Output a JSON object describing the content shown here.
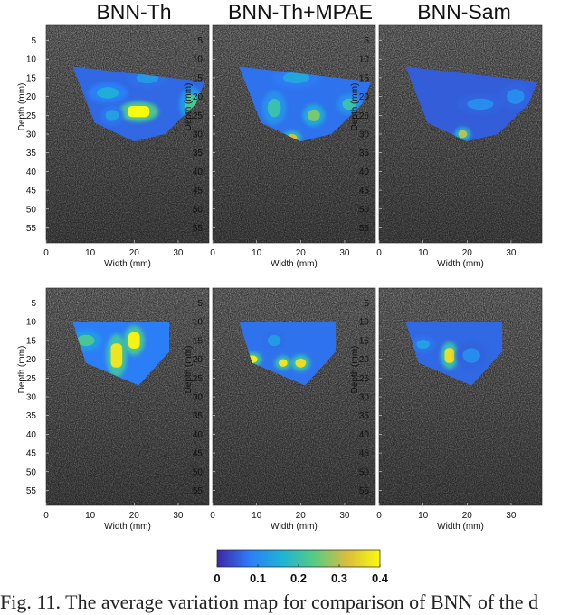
{
  "titles": [
    "BNN-Th",
    "BNN-Th+MPAE",
    "BNN-Sam"
  ],
  "caption": "Fig. 11. The average variation map for comparison of BNN of the d",
  "colorbar": {
    "ticks": [
      "0",
      "0.1",
      "0.2",
      "0.3",
      "0.4"
    ],
    "colors": [
      "#3e26a8",
      "#2c7ef7",
      "#1db4d5",
      "#57cc82",
      "#dcbd3b",
      "#f9fb0e"
    ]
  },
  "chart_data": [
    {
      "type": "heatmap",
      "title": "BNN-Th",
      "xlabel": "Width (mm)",
      "ylabel": "Depth (mm)",
      "xticks": [
        "0",
        "10",
        "20",
        "30"
      ],
      "yticks": [
        "5",
        "10",
        "15",
        "20",
        "25",
        "30",
        "35",
        "40",
        "45",
        "50",
        "55"
      ],
      "xlim": [
        0,
        37
      ],
      "ylim": [
        1,
        59
      ],
      "colormap": "parula",
      "clim": [
        0,
        0.4
      ],
      "roi_polygon": [
        [
          6,
          12
        ],
        [
          36,
          16
        ],
        [
          34,
          22
        ],
        [
          27,
          30
        ],
        [
          20,
          32
        ],
        [
          11,
          27
        ]
      ],
      "base_value": 0.06,
      "hotspots": [
        {
          "x": 21,
          "y": 24,
          "rx": 2.5,
          "ry": 1.5,
          "value": 0.4,
          "shape": "rect"
        },
        {
          "x": 14,
          "y": 19,
          "rx": 2.5,
          "ry": 1.5,
          "value": 0.15,
          "shape": "ellipse"
        },
        {
          "x": 33,
          "y": 22,
          "rx": 1.5,
          "ry": 2.5,
          "value": 0.22,
          "shape": "ellipse"
        },
        {
          "x": 23,
          "y": 15,
          "rx": 2.5,
          "ry": 1.5,
          "value": 0.12,
          "shape": "ellipse"
        },
        {
          "x": 15,
          "y": 25,
          "rx": 1.5,
          "ry": 1.5,
          "value": 0.13,
          "shape": "ellipse"
        }
      ]
    },
    {
      "type": "heatmap",
      "title": "BNN-Th+MPAE",
      "xlabel": "Width (mm)",
      "ylabel": "Depth (mm)",
      "xticks": [
        "0",
        "10",
        "20",
        "30"
      ],
      "yticks": [
        "5",
        "10",
        "15",
        "20",
        "25",
        "30",
        "35",
        "40",
        "45",
        "50",
        "55"
      ],
      "xlim": [
        0,
        37
      ],
      "ylim": [
        1,
        59
      ],
      "colormap": "parula",
      "clim": [
        0,
        0.4
      ],
      "roi_polygon": [
        [
          6,
          12
        ],
        [
          36,
          16
        ],
        [
          34,
          22
        ],
        [
          27,
          30
        ],
        [
          20,
          32
        ],
        [
          11,
          27
        ]
      ],
      "base_value": 0.07,
      "hotspots": [
        {
          "x": 18,
          "y": 31,
          "rx": 1.2,
          "ry": 1.0,
          "value": 0.32,
          "shape": "ellipse"
        },
        {
          "x": 23,
          "y": 25,
          "rx": 1.4,
          "ry": 1.6,
          "value": 0.26,
          "shape": "ellipse"
        },
        {
          "x": 14,
          "y": 23,
          "rx": 1.5,
          "ry": 2.5,
          "value": 0.2,
          "shape": "ellipse"
        },
        {
          "x": 31,
          "y": 22,
          "rx": 1.5,
          "ry": 1.5,
          "value": 0.2,
          "shape": "ellipse"
        },
        {
          "x": 19,
          "y": 15,
          "rx": 3,
          "ry": 1.5,
          "value": 0.14,
          "shape": "ellipse"
        }
      ]
    },
    {
      "type": "heatmap",
      "title": "BNN-Sam",
      "xlabel": "Width (mm)",
      "ylabel": "Depth (mm)",
      "xticks": [
        "0",
        "10",
        "20",
        "30"
      ],
      "yticks": [
        "5",
        "10",
        "15",
        "20",
        "25",
        "30",
        "35",
        "40",
        "45",
        "50",
        "55"
      ],
      "xlim": [
        0,
        37
      ],
      "ylim": [
        1,
        59
      ],
      "colormap": "parula",
      "clim": [
        0,
        0.4
      ],
      "roi_polygon": [
        [
          6,
          12
        ],
        [
          36,
          16
        ],
        [
          34,
          22
        ],
        [
          27,
          30
        ],
        [
          20,
          32
        ],
        [
          11,
          27
        ]
      ],
      "base_value": 0.05,
      "hotspots": [
        {
          "x": 19,
          "y": 30,
          "rx": 1.0,
          "ry": 1.0,
          "value": 0.3,
          "shape": "ellipse"
        },
        {
          "x": 23,
          "y": 22,
          "rx": 3,
          "ry": 1.5,
          "value": 0.1,
          "shape": "ellipse"
        },
        {
          "x": 31,
          "y": 20,
          "rx": 2,
          "ry": 2,
          "value": 0.1,
          "shape": "ellipse"
        }
      ]
    },
    {
      "type": "heatmap",
      "title": "",
      "xlabel": "Width (mm)",
      "ylabel": "Depth (mm)",
      "xticks": [
        "0",
        "10",
        "20",
        "30"
      ],
      "yticks": [
        "5",
        "10",
        "15",
        "20",
        "25",
        "30",
        "35",
        "40",
        "45",
        "50",
        "55"
      ],
      "xlim": [
        0,
        37
      ],
      "ylim": [
        1,
        59
      ],
      "colormap": "parula",
      "clim": [
        0,
        0.4
      ],
      "roi_polygon": [
        [
          6,
          10
        ],
        [
          28,
          10
        ],
        [
          28,
          18
        ],
        [
          21,
          27
        ],
        [
          9,
          21
        ]
      ],
      "base_value": 0.08,
      "hotspots": [
        {
          "x": 16,
          "y": 19,
          "rx": 1.3,
          "ry": 3.2,
          "value": 0.37,
          "shape": "rect"
        },
        {
          "x": 20,
          "y": 15,
          "rx": 1.3,
          "ry": 2.2,
          "value": 0.39,
          "shape": "rect"
        },
        {
          "x": 9,
          "y": 15,
          "rx": 2,
          "ry": 1.5,
          "value": 0.22,
          "shape": "ellipse"
        }
      ]
    },
    {
      "type": "heatmap",
      "title": "",
      "xlabel": "Width (mm)",
      "ylabel": "Depth (mm)",
      "xticks": [
        "0",
        "10",
        "20",
        "30"
      ],
      "yticks": [
        "5",
        "10",
        "15",
        "20",
        "25",
        "30",
        "35",
        "40",
        "45",
        "50",
        "55"
      ],
      "xlim": [
        0,
        37
      ],
      "ylim": [
        1,
        59
      ],
      "colormap": "parula",
      "clim": [
        0,
        0.4
      ],
      "roi_polygon": [
        [
          6,
          10
        ],
        [
          28,
          10
        ],
        [
          28,
          18
        ],
        [
          21,
          27
        ],
        [
          9,
          21
        ]
      ],
      "base_value": 0.07,
      "hotspots": [
        {
          "x": 9,
          "y": 20,
          "rx": 1.2,
          "ry": 1.0,
          "value": 0.38,
          "shape": "ellipse"
        },
        {
          "x": 16,
          "y": 21,
          "rx": 1.0,
          "ry": 1.0,
          "value": 0.37,
          "shape": "ellipse"
        },
        {
          "x": 20,
          "y": 21,
          "rx": 1.2,
          "ry": 1.2,
          "value": 0.36,
          "shape": "ellipse"
        },
        {
          "x": 14,
          "y": 15,
          "rx": 1.5,
          "ry": 1.5,
          "value": 0.12,
          "shape": "ellipse"
        }
      ]
    },
    {
      "type": "heatmap",
      "title": "",
      "xlabel": "Width (mm)",
      "ylabel": "Depth (mm)",
      "xticks": [
        "0",
        "10",
        "20",
        "30"
      ],
      "yticks": [
        "5",
        "10",
        "15",
        "20",
        "25",
        "30",
        "35",
        "40",
        "45",
        "50",
        "55"
      ],
      "xlim": [
        0,
        37
      ],
      "ylim": [
        1,
        59
      ],
      "colormap": "parula",
      "clim": [
        0,
        0.4
      ],
      "roi_polygon": [
        [
          6,
          10
        ],
        [
          28,
          10
        ],
        [
          28,
          18
        ],
        [
          21,
          27
        ],
        [
          9,
          21
        ]
      ],
      "base_value": 0.06,
      "hotspots": [
        {
          "x": 16,
          "y": 19,
          "rx": 1.1,
          "ry": 2.0,
          "value": 0.36,
          "shape": "rect"
        },
        {
          "x": 10,
          "y": 16,
          "rx": 1.5,
          "ry": 1.2,
          "value": 0.13,
          "shape": "ellipse"
        },
        {
          "x": 21,
          "y": 19,
          "rx": 2,
          "ry": 2,
          "value": 0.1,
          "shape": "ellipse"
        }
      ]
    }
  ]
}
